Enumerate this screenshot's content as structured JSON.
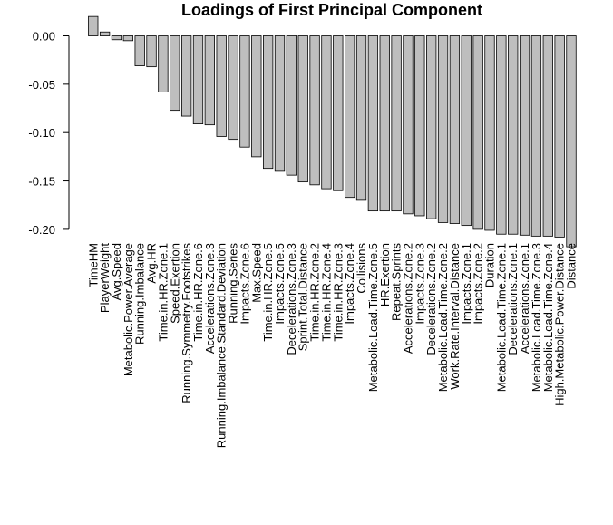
{
  "chart_data": {
    "type": "bar",
    "title": "Loadings of First Principal Component",
    "xlabel": "",
    "ylabel": "",
    "ylim": [
      -0.22,
      0.02
    ],
    "y_ticks": [
      0.0,
      -0.05,
      -0.1,
      -0.15,
      -0.2
    ],
    "y_tick_labels": [
      "0.00",
      "-0.05",
      "-0.10",
      "-0.15",
      "-0.20"
    ],
    "grid": false,
    "bar_color": "#bebebe",
    "categories": [
      "TimeHM",
      "PlayerWeight",
      "Avg.Speed",
      "Metabolic.Power.Average",
      "Running.Imbalance",
      "Avg.HR",
      "Time.in.HR.Zone.1",
      "Speed.Exertion",
      "Running.Symmetry.Footstrikes",
      "Time.in.HR.Zone.6",
      "Accelerations.Zone.3",
      "Running.Imbalance.Standard.Deviation",
      "Running.Series",
      "Impacts.Zone.6",
      "Max.Speed",
      "Time.in.HR.Zone.5",
      "Impacts.Zone.5",
      "Decelerations.Zone.3",
      "Sprint.Total.Distance",
      "Time.in.HR.Zone.2",
      "Time.in.HR.Zone.4",
      "Time.in.HR.Zone.3",
      "Impacts.Zone.4",
      "Collisions",
      "Metabolic.Load.Time.Zone.5",
      "HR.Exertion",
      "Repeat.Sprints",
      "Accelerations.Zone.2",
      "Impacts.Zone.3",
      "Decelerations.Zone.2",
      "Metabolic.Load.Time.Zone.2",
      "Work.Rate.Interval.Distance",
      "Impacts.Zone.1",
      "Impacts.Zone.2",
      "Duration",
      "Metabolic.Load.Time.Zone.1",
      "Decelerations.Zone.1",
      "Accelerations.Zone.1",
      "Metabolic.Load.Time.Zone.3",
      "Metabolic.Load.Time.Zone.4",
      "High.Metabolic.Power.Distance",
      "Distance"
    ],
    "values": [
      0.02,
      0.004,
      -0.004,
      -0.005,
      -0.031,
      -0.032,
      -0.058,
      -0.077,
      -0.083,
      -0.091,
      -0.092,
      -0.104,
      -0.107,
      -0.115,
      -0.125,
      -0.137,
      -0.14,
      -0.144,
      -0.151,
      -0.154,
      -0.158,
      -0.16,
      -0.167,
      -0.17,
      -0.181,
      -0.181,
      -0.181,
      -0.184,
      -0.186,
      -0.189,
      -0.193,
      -0.194,
      -0.196,
      -0.2,
      -0.201,
      -0.205,
      -0.205,
      -0.206,
      -0.207,
      -0.207,
      -0.208,
      -0.218
    ]
  }
}
